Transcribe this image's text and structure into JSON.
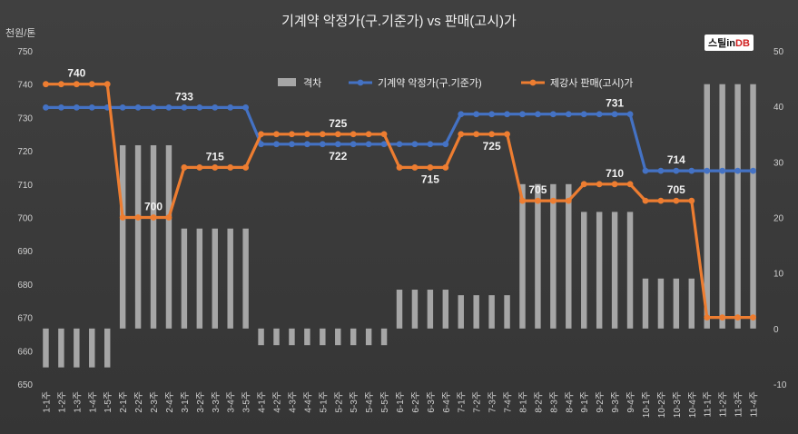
{
  "chart_data": {
    "type": "line",
    "title": "기계약 악정가(구.기준가) vs 판매(고시)가",
    "ylabel": "천원/톤",
    "ylim": [
      650,
      750
    ],
    "y2lim": [
      -10,
      50
    ],
    "yticks": [
      650,
      660,
      670,
      680,
      690,
      700,
      710,
      720,
      730,
      740,
      750
    ],
    "y2ticks": [
      -10,
      0,
      10,
      20,
      30,
      40,
      50
    ],
    "legend_position": "top",
    "grid": false,
    "categories": [
      "1-1주",
      "1-2주",
      "1-3주",
      "1-4주",
      "1-5주",
      "2-1주",
      "2-2주",
      "2-3주",
      "2-4주",
      "3-1주",
      "3-2주",
      "3-3주",
      "3-4주",
      "3-5주",
      "4-1주",
      "4-2주",
      "4-3주",
      "4-4주",
      "5-1주",
      "5-2주",
      "5-3주",
      "5-4주",
      "5-5주",
      "6-1주",
      "6-2주",
      "6-3주",
      "6-4주",
      "7-1주",
      "7-2주",
      "7-3주",
      "7-4주",
      "8-1주",
      "8-2주",
      "8-3주",
      "8-4주",
      "9-1주",
      "9-2주",
      "9-3주",
      "9-4주",
      "10-1주",
      "10-2주",
      "10-3주",
      "10-4주",
      "11-1주",
      "11-2주",
      "11-3주",
      "11-4주"
    ],
    "series": [
      {
        "name": "격차",
        "type": "bar",
        "axis": "right",
        "color": "#a6a6a6",
        "values": [
          -7,
          -7,
          -7,
          -7,
          -7,
          33,
          33,
          33,
          33,
          18,
          18,
          18,
          18,
          18,
          -3,
          -3,
          -3,
          -3,
          -3,
          -3,
          -3,
          -3,
          -3,
          7,
          7,
          7,
          7,
          6,
          6,
          6,
          6,
          26,
          26,
          26,
          26,
          21,
          21,
          21,
          21,
          9,
          9,
          9,
          9,
          44,
          44,
          44,
          44
        ]
      },
      {
        "name": "기계약 악정가(구.기준가)",
        "type": "line",
        "axis": "left",
        "color": "#4472c4",
        "values": [
          733,
          733,
          733,
          733,
          733,
          733,
          733,
          733,
          733,
          733,
          733,
          733,
          733,
          733,
          722,
          722,
          722,
          722,
          722,
          722,
          722,
          722,
          722,
          722,
          722,
          722,
          722,
          731,
          731,
          731,
          731,
          731,
          731,
          731,
          731,
          731,
          731,
          731,
          731,
          714,
          714,
          714,
          714,
          714,
          714,
          714,
          714
        ]
      },
      {
        "name": "제강사 판매(고시)가",
        "type": "line",
        "axis": "left",
        "color": "#ed7d31",
        "values": [
          740,
          740,
          740,
          740,
          740,
          700,
          700,
          700,
          700,
          715,
          715,
          715,
          715,
          715,
          725,
          725,
          725,
          725,
          725,
          725,
          725,
          725,
          725,
          715,
          715,
          715,
          715,
          725,
          725,
          725,
          725,
          705,
          705,
          705,
          705,
          710,
          710,
          710,
          710,
          705,
          705,
          705,
          705,
          670,
          670,
          670,
          670
        ]
      }
    ],
    "data_labels": [
      {
        "series": 2,
        "index": 2,
        "text": "740",
        "pos": "above"
      },
      {
        "series": 2,
        "index": 7,
        "text": "700",
        "pos": "above"
      },
      {
        "series": 2,
        "index": 11,
        "text": "715",
        "pos": "above"
      },
      {
        "series": 2,
        "index": 19,
        "text": "725",
        "pos": "above"
      },
      {
        "series": 2,
        "index": 25,
        "text": "715",
        "pos": "below"
      },
      {
        "series": 2,
        "index": 29,
        "text": "725",
        "pos": "below"
      },
      {
        "series": 2,
        "index": 32,
        "text": "705",
        "pos": "above"
      },
      {
        "series": 2,
        "index": 37,
        "text": "710",
        "pos": "above"
      },
      {
        "series": 2,
        "index": 41,
        "text": "705",
        "pos": "above"
      },
      {
        "series": 1,
        "index": 9,
        "text": "733",
        "pos": "above"
      },
      {
        "series": 1,
        "index": 19,
        "text": "722",
        "pos": "below"
      },
      {
        "series": 1,
        "index": 37,
        "text": "731",
        "pos": "above"
      },
      {
        "series": 1,
        "index": 41,
        "text": "714",
        "pos": "above"
      }
    ]
  },
  "logo": {
    "text": "스틸in",
    "accent": "DB"
  }
}
